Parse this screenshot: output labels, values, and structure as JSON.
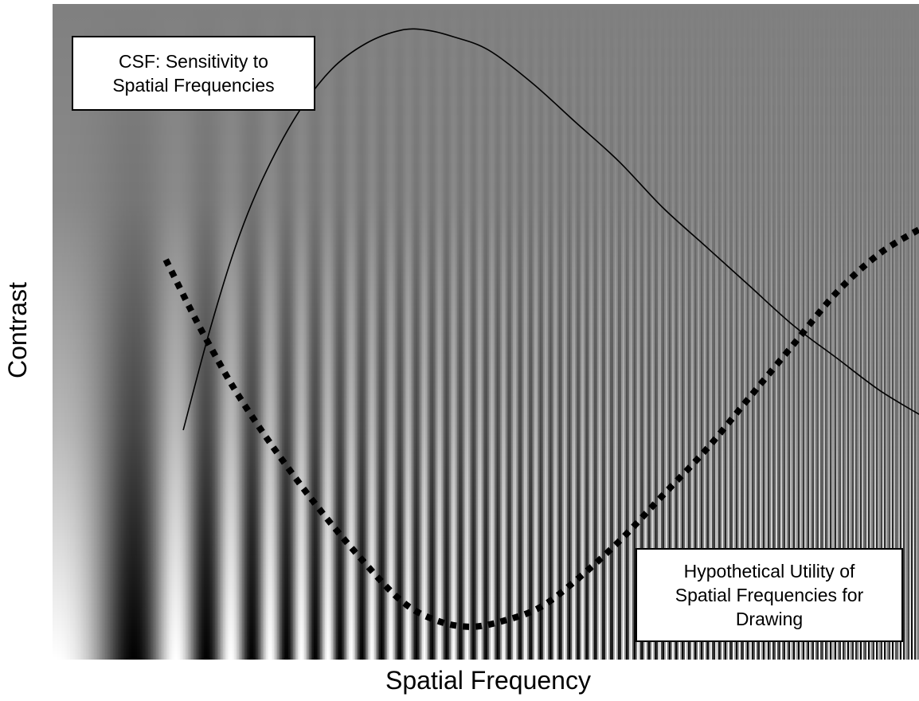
{
  "chart_data": {
    "type": "line",
    "title": "",
    "xlabel": "Spatial Frequency",
    "ylabel": "Contrast",
    "background": "Campbell-Robson contrast sensitivity grating",
    "x_scale": "increasing spatial frequency (left to right)",
    "y_scale": "decreasing contrast (bottom to top)",
    "ticks": "none",
    "grid": false,
    "series": [
      {
        "key": "csf",
        "style": "solid",
        "color": "#000000",
        "x": [
          0.15,
          0.18,
          0.21,
          0.24,
          0.28,
          0.32,
          0.36,
          0.4,
          0.43,
          0.46,
          0.5,
          0.55,
          0.6,
          0.65,
          0.7,
          0.75,
          0.8,
          0.85,
          0.9,
          0.95,
          1.0
        ],
        "y": [
          0.35,
          0.5,
          0.63,
          0.73,
          0.83,
          0.9,
          0.94,
          0.96,
          0.96,
          0.95,
          0.93,
          0.88,
          0.82,
          0.76,
          0.69,
          0.63,
          0.57,
          0.51,
          0.46,
          0.41,
          0.37
        ]
      },
      {
        "key": "utility",
        "style": "dotted",
        "color": "#000000",
        "x": [
          0.13,
          0.16,
          0.18,
          0.21,
          0.25,
          0.3,
          0.35,
          0.4,
          0.44,
          0.48,
          0.52,
          0.56,
          0.6,
          0.65,
          0.7,
          0.75,
          0.8,
          0.85,
          0.9,
          0.95,
          1.0
        ],
        "y": [
          0.61,
          0.53,
          0.48,
          0.41,
          0.33,
          0.24,
          0.16,
          0.09,
          0.06,
          0.05,
          0.06,
          0.08,
          0.12,
          0.18,
          0.25,
          0.32,
          0.4,
          0.48,
          0.56,
          0.62,
          0.66
        ]
      }
    ],
    "annotations": [
      {
        "key": "csf",
        "lines": [
          "CSF: Sensitivity to",
          "Spatial Frequencies"
        ]
      },
      {
        "key": "utility",
        "lines": [
          "Hypothetical Utility of",
          "Spatial Frequencies for",
          "Drawing"
        ]
      }
    ]
  }
}
